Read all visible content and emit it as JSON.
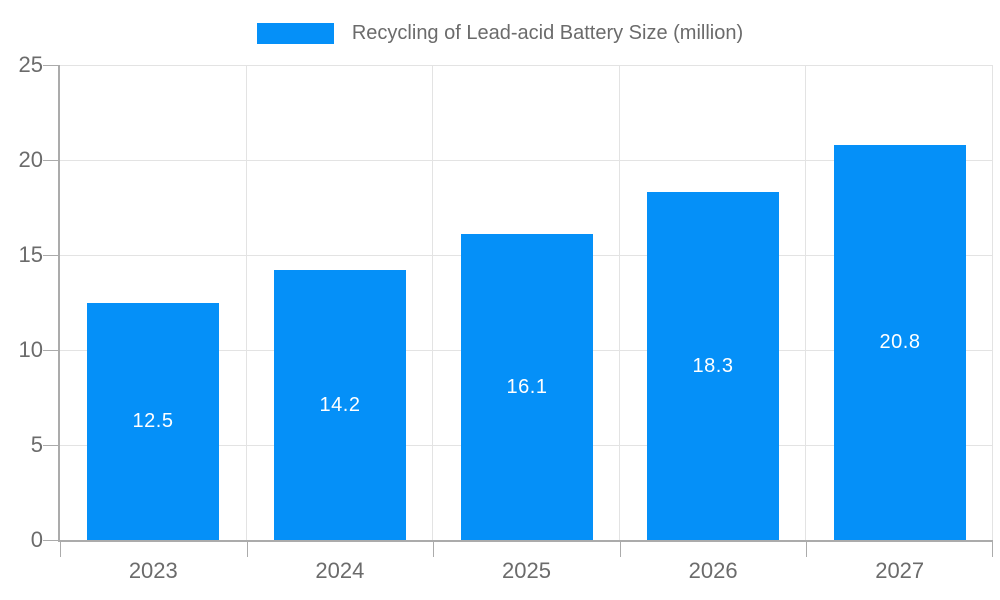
{
  "chart_data": {
    "type": "bar",
    "title": "Recycling of Lead-acid Battery Size (million)",
    "categories": [
      "2023",
      "2024",
      "2025",
      "2026",
      "2027"
    ],
    "values": [
      12.5,
      14.2,
      16.1,
      18.3,
      20.8
    ],
    "value_labels": [
      "12.5",
      "14.2",
      "16.1",
      "18.3",
      "20.8"
    ],
    "xlabel": "",
    "ylabel": "",
    "ylim": [
      0,
      25
    ],
    "yticks": [
      0,
      5,
      10,
      15,
      20,
      25
    ],
    "grid": true,
    "legend_position": "top-center",
    "colors": {
      "bar": "#0590f8",
      "value_label": "#ffffff",
      "axis_text": "#6b6b6b",
      "legend_text": "#6b6b6b",
      "gridline": "#e3e3e3",
      "axis_line": "#ababab"
    }
  }
}
